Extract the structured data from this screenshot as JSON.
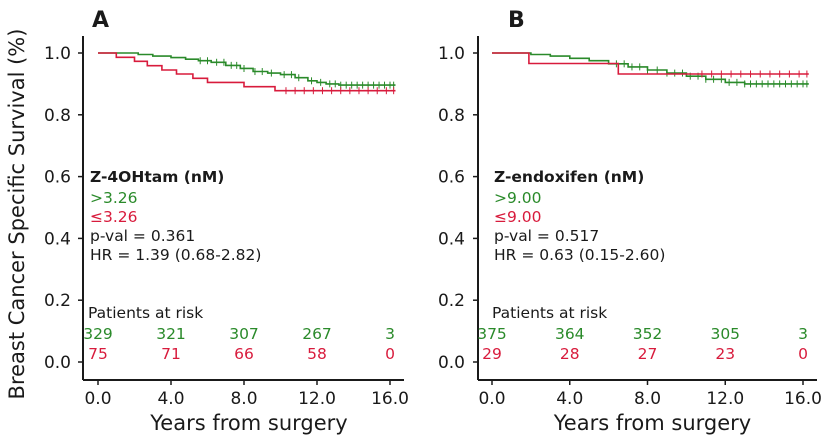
{
  "colors": {
    "green": "#2a8a2a",
    "red": "#d81b3c",
    "axis": "#1a1a1a"
  },
  "y_axis_title": "Breast Cancer Specific Survival (%)",
  "chart_data": [
    {
      "type": "line",
      "panel_label": "A",
      "xlabel": "Years from surgery",
      "ylabel": "Breast Cancer Specific Survival (%)",
      "xlim": [
        0,
        16.5
      ],
      "ylim": [
        0,
        1.05
      ],
      "xticks": [
        "0.0",
        "4.0",
        "8.0",
        "12.0",
        "16.0"
      ],
      "yticks": [
        "0.0",
        "0.2",
        "0.4",
        "0.6",
        "0.8",
        "1.0"
      ],
      "legend_title": "Z-4OHtam (nM)",
      "series": [
        {
          "name": ">3.26",
          "color": "#2a8a2a",
          "x": [
            0,
            2.2,
            3.0,
            4.0,
            4.8,
            5.5,
            6.2,
            7.0,
            7.8,
            8.5,
            9.3,
            10.0,
            10.8,
            11.5,
            12.0,
            12.5,
            13.2,
            16.3
          ],
          "y": [
            1.0,
            0.995,
            0.99,
            0.985,
            0.98,
            0.975,
            0.97,
            0.96,
            0.95,
            0.94,
            0.935,
            0.93,
            0.92,
            0.91,
            0.905,
            0.9,
            0.896,
            0.896
          ],
          "censor_x": [
            5.6,
            6.0,
            6.5,
            6.9,
            7.3,
            7.6,
            8.0,
            8.6,
            9.0,
            9.5,
            10.2,
            10.6,
            11.0,
            11.7,
            12.2,
            12.7,
            13.0,
            13.3,
            13.6,
            13.9,
            14.2,
            14.5,
            14.8,
            15.1,
            15.4,
            15.7,
            16.0,
            16.2
          ]
        },
        {
          "name": "≤3.26",
          "color": "#d81b3c",
          "x": [
            0,
            1.0,
            2.0,
            2.7,
            3.5,
            4.3,
            5.2,
            6.0,
            8.0,
            9.7,
            16.3
          ],
          "y": [
            1.0,
            0.986,
            0.973,
            0.959,
            0.945,
            0.932,
            0.918,
            0.905,
            0.891,
            0.878,
            0.878
          ],
          "censor_x": [
            10.3,
            10.8,
            11.3,
            11.8,
            12.3,
            12.8,
            13.3,
            13.8,
            14.3,
            14.8,
            15.3,
            15.8,
            16.2
          ]
        }
      ],
      "annotations": {
        "title": "Z-4OHtam (nM)",
        "group_high": ">3.26",
        "group_low": "≤3.26",
        "pval": "p-val = 0.361",
        "hr": "HR = 1.39 (0.68-2.82)"
      },
      "risk_table": {
        "title": "Patients at risk",
        "times": [
          0,
          4,
          8,
          12,
          16
        ],
        "high": [
          "329",
          "321",
          "307",
          "267",
          "3"
        ],
        "low": [
          "75",
          "71",
          "66",
          "58",
          "0"
        ]
      }
    },
    {
      "type": "line",
      "panel_label": "B",
      "xlabel": "Years from surgery",
      "ylabel": "",
      "xlim": [
        0,
        16.5
      ],
      "ylim": [
        0,
        1.05
      ],
      "xticks": [
        "0.0",
        "4.0",
        "8.0",
        "12.0",
        "16.0"
      ],
      "yticks": [
        "0.0",
        "0.2",
        "0.4",
        "0.6",
        "0.8",
        "1.0"
      ],
      "legend_title": "Z-endoxifen (nM)",
      "series": [
        {
          "name": ">9.00",
          "color": "#2a8a2a",
          "x": [
            0,
            2.0,
            3.0,
            4.0,
            5.0,
            6.0,
            7.0,
            8.0,
            9.0,
            10.0,
            11.0,
            12.0,
            13.0,
            16.3
          ],
          "y": [
            1.0,
            0.995,
            0.99,
            0.983,
            0.975,
            0.965,
            0.955,
            0.945,
            0.935,
            0.925,
            0.915,
            0.905,
            0.9,
            0.9
          ],
          "censor_x": [
            6.4,
            6.8,
            7.2,
            7.6,
            8.0,
            8.5,
            9.0,
            9.4,
            9.8,
            10.2,
            10.6,
            11.0,
            11.4,
            11.8,
            12.2,
            12.6,
            13.0,
            13.3,
            13.6,
            13.9,
            14.2,
            14.5,
            14.8,
            15.1,
            15.4,
            15.7,
            16.0,
            16.2
          ]
        },
        {
          "name": "≤9.00",
          "color": "#d81b3c",
          "x": [
            0,
            1.9,
            6.5,
            16.3
          ],
          "y": [
            1.0,
            0.966,
            0.932,
            0.932
          ],
          "censor_x": [
            10.8,
            11.3,
            11.8,
            12.3,
            12.8,
            13.3,
            13.8,
            14.3,
            14.8,
            15.3,
            15.8,
            16.2
          ]
        }
      ],
      "annotations": {
        "title": "Z-endoxifen (nM)",
        "group_high": ">9.00",
        "group_low": "≤9.00",
        "pval": "p-val = 0.517",
        "hr": "HR = 0.63 (0.15-2.60)"
      },
      "risk_table": {
        "title": "Patients at risk",
        "times": [
          0,
          4,
          8,
          12,
          16
        ],
        "high": [
          "375",
          "364",
          "352",
          "305",
          "3"
        ],
        "low": [
          "29",
          "28",
          "27",
          "23",
          "0"
        ]
      }
    }
  ]
}
